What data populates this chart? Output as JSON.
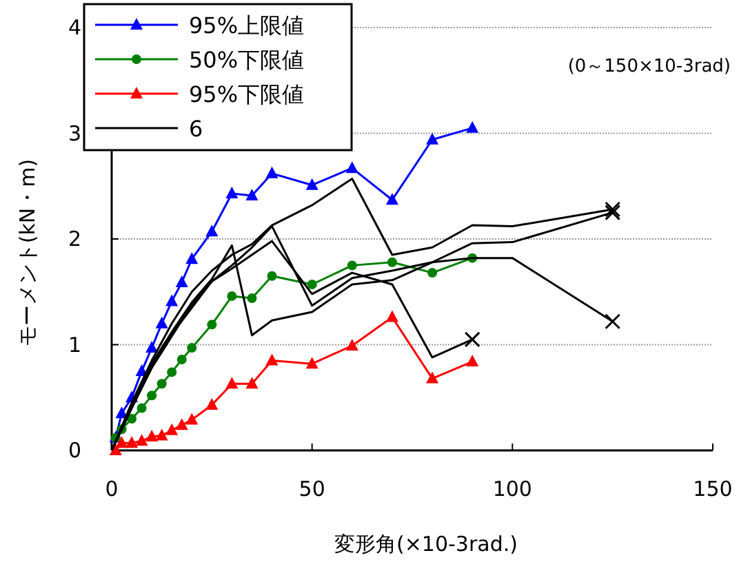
{
  "chart_data": {
    "type": "line",
    "xlabel": "変形角(×10-3rad.)",
    "ylabel": "モーメント(kN・m)",
    "annotations": [
      "(0～150×10-3rad)"
    ],
    "xlim": [
      0,
      150
    ],
    "xticks": [
      0,
      50,
      100,
      150
    ],
    "ylim": [
      0,
      4
    ],
    "yticks": [
      0,
      1,
      2,
      3,
      4
    ],
    "grid": "y",
    "legend": "top left",
    "series": [
      {
        "name": "95%上限値",
        "color": "#0000ff",
        "marker": "triangle",
        "x": [
          1,
          2.5,
          5,
          7.5,
          10,
          12.5,
          15,
          17.5,
          20,
          25,
          30,
          35,
          40,
          50,
          60,
          70,
          80,
          90
        ],
        "values": [
          0.12,
          0.35,
          0.5,
          0.75,
          0.97,
          1.2,
          1.41,
          1.59,
          1.81,
          2.07,
          2.43,
          2.41,
          2.62,
          2.51,
          2.67,
          2.37,
          2.94,
          3.05
        ]
      },
      {
        "name": "50%下限値",
        "color": "#008000",
        "marker": "circle",
        "x": [
          1,
          2.5,
          5,
          7.5,
          10,
          12.5,
          15,
          17.5,
          20,
          25,
          30,
          35,
          40,
          50,
          60,
          70,
          80,
          90
        ],
        "values": [
          0.12,
          0.2,
          0.3,
          0.4,
          0.52,
          0.63,
          0.74,
          0.86,
          0.97,
          1.19,
          1.46,
          1.44,
          1.65,
          1.57,
          1.75,
          1.78,
          1.68,
          1.82
        ]
      },
      {
        "name": "95%下限値",
        "color": "#ff0000",
        "marker": "triangle",
        "x": [
          1,
          2.5,
          5,
          7.5,
          10,
          12.5,
          15,
          17.5,
          20,
          25,
          30,
          35,
          40,
          50,
          60,
          70,
          80,
          90
        ],
        "values": [
          0,
          0.07,
          0.07,
          0.09,
          0.13,
          0.14,
          0.19,
          0.24,
          0.29,
          0.43,
          0.63,
          0.63,
          0.85,
          0.82,
          0.99,
          1.26,
          0.68,
          0.84
        ]
      },
      {
        "name": "6",
        "color": "#000000",
        "x": [
          0,
          5,
          10,
          15,
          20,
          25,
          30,
          35,
          40,
          50,
          60,
          70,
          80,
          90,
          100,
          125
        ],
        "values": [
          0,
          0.45,
          0.85,
          1.2,
          1.5,
          1.7,
          1.85,
          1.95,
          2.13,
          2.32,
          2.57,
          1.85,
          1.92,
          2.13,
          2.12,
          2.28
        ]
      },
      {
        "color": "#000000",
        "x": [
          0,
          5,
          10,
          15,
          20,
          25,
          30,
          35,
          40,
          50,
          60,
          70,
          80,
          90
        ],
        "values": [
          0,
          0.4,
          0.8,
          1.1,
          1.35,
          1.6,
          1.72,
          1.85,
          1.98,
          1.48,
          1.68,
          1.57,
          0.88,
          1.05
        ]
      },
      {
        "color": "#000000",
        "x": [
          0,
          5,
          10,
          15,
          20,
          25,
          30,
          35,
          40,
          50,
          60,
          70,
          80,
          90,
          100,
          125
        ],
        "values": [
          0,
          0.42,
          0.82,
          1.12,
          1.4,
          1.62,
          1.94,
          1.09,
          1.23,
          1.31,
          1.57,
          1.61,
          1.78,
          1.82,
          1.82,
          1.22
        ]
      },
      {
        "color": "#000000",
        "x": [
          0,
          5,
          10,
          15,
          20,
          25,
          30,
          35,
          40,
          50,
          60,
          70,
          80,
          90,
          100,
          125
        ],
        "values": [
          0,
          0.4,
          0.78,
          1.08,
          1.38,
          1.6,
          1.75,
          1.92,
          2.12,
          1.37,
          1.63,
          1.7,
          1.78,
          1.96,
          1.97,
          2.25
        ]
      },
      {
        "type": "scatter",
        "color": "#000000",
        "marker": "cross",
        "x": [
          90,
          125,
          125,
          125
        ],
        "values": [
          1.05,
          2.28,
          1.22,
          2.25
        ]
      }
    ]
  }
}
